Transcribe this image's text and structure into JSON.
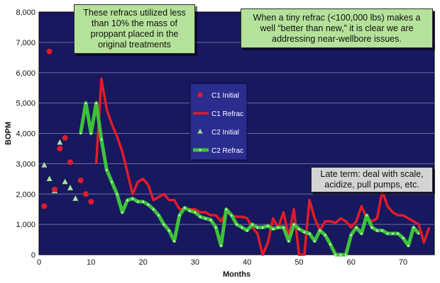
{
  "chart_data": {
    "type": "line",
    "xlabel": "Months",
    "ylabel": "BOPM",
    "xlim": [
      0,
      76
    ],
    "ylim": [
      0,
      8000
    ],
    "xticks": [
      0,
      10,
      20,
      30,
      40,
      50,
      60,
      70
    ],
    "yticks": [
      0,
      1000,
      2000,
      3000,
      4000,
      5000,
      6000,
      7000,
      8000
    ],
    "ytick_labels": [
      "0",
      "1,000",
      "2,000",
      "3,000",
      "4,000",
      "5,000",
      "6,000",
      "7,000",
      "8,000"
    ],
    "grid": true,
    "legend_position": "center",
    "series": [
      {
        "name": "C1 Initial",
        "style": "points",
        "x": [
          1,
          2,
          3,
          4,
          5,
          6,
          8,
          9,
          10
        ],
        "y": [
          1600,
          6700,
          2150,
          3500,
          3850,
          3050,
          2450,
          2000,
          1750
        ]
      },
      {
        "name": "C1 Refrac",
        "style": "line",
        "x": [
          11,
          12,
          13,
          14,
          15,
          16,
          17,
          18,
          19,
          20,
          21,
          22,
          23,
          24,
          25,
          26,
          27,
          28,
          29,
          30,
          31,
          32,
          33,
          34,
          35,
          36,
          37,
          38,
          39,
          40,
          41,
          42,
          43,
          44,
          45,
          46,
          47,
          48,
          49,
          50,
          51,
          52,
          53,
          54,
          55,
          56,
          57,
          58,
          59,
          60,
          61,
          62,
          63,
          64,
          65,
          66,
          67,
          68,
          69,
          70,
          71,
          72,
          73,
          74,
          75
        ],
        "y": [
          3000,
          5800,
          4800,
          4300,
          3900,
          3400,
          2700,
          2000,
          2400,
          2500,
          2300,
          1800,
          1900,
          2000,
          1800,
          1800,
          1500,
          1500,
          1500,
          1500,
          1400,
          1400,
          1300,
          1300,
          1100,
          1400,
          1300,
          1250,
          1250,
          1200,
          900,
          700,
          0,
          400,
          1200,
          900,
          1400,
          600,
          1500,
          0,
          0,
          1800,
          1200,
          800,
          1100,
          1100,
          1050,
          1200,
          1100,
          900,
          1100,
          1600,
          1200,
          1100,
          1200,
          2100,
          1600,
          1400,
          1300,
          1300,
          1200,
          1100,
          1000,
          400,
          900
        ]
      },
      {
        "name": "C2 Initial",
        "style": "points",
        "x": [
          1,
          2,
          3,
          4,
          5,
          6,
          7
        ],
        "y": [
          2950,
          2500,
          2100,
          3700,
          2400,
          2200,
          1850
        ]
      },
      {
        "name": "C2 Refrac",
        "style": "line",
        "x": [
          8,
          9,
          10,
          11,
          12,
          13,
          14,
          15,
          16,
          17,
          18,
          19,
          20,
          21,
          22,
          23,
          24,
          25,
          26,
          27,
          28,
          29,
          30,
          31,
          32,
          33,
          34,
          35,
          36,
          37,
          38,
          39,
          40,
          41,
          42,
          43,
          44,
          45,
          46,
          47,
          48,
          49,
          50,
          51,
          52,
          53,
          54,
          55,
          56,
          57,
          58,
          59,
          60,
          61,
          62,
          63,
          64,
          65,
          66,
          67,
          68,
          69,
          70,
          71,
          72,
          73
        ],
        "y": [
          4000,
          5000,
          4000,
          5000,
          3800,
          2800,
          2400,
          2000,
          1400,
          1800,
          1850,
          1750,
          1750,
          1650,
          1500,
          1300,
          1000,
          800,
          450,
          1300,
          1550,
          1450,
          1400,
          1250,
          1200,
          1150,
          900,
          300,
          1500,
          1300,
          1000,
          900,
          800,
          1000,
          900,
          900,
          950,
          850,
          900,
          900,
          450,
          1000,
          850,
          750,
          700,
          450,
          800,
          650,
          350,
          0,
          0,
          0,
          650,
          900,
          700,
          1300,
          900,
          800,
          800,
          700,
          700,
          700,
          550,
          300,
          900,
          700
        ]
      }
    ]
  },
  "annotations": {
    "top_left": "These refracs utilized less than 10% the mass of proppant placed in the original treatments",
    "top_right": "When a tiny refrac (<100,000 lbs) makes a well “better than new,” it is clear we are addressing near-wellbore issues.",
    "bottom_right": "Late term: deal with scale, acidize, pull pumps, etc."
  },
  "colors": {
    "plot_bg": "#17185e",
    "grid": "#6c6fa6",
    "c1": "#e11b2a",
    "c2_line": "#3ec23a",
    "c2_marker": "#a8e09a",
    "legend_bg": "#2a2c8e"
  }
}
